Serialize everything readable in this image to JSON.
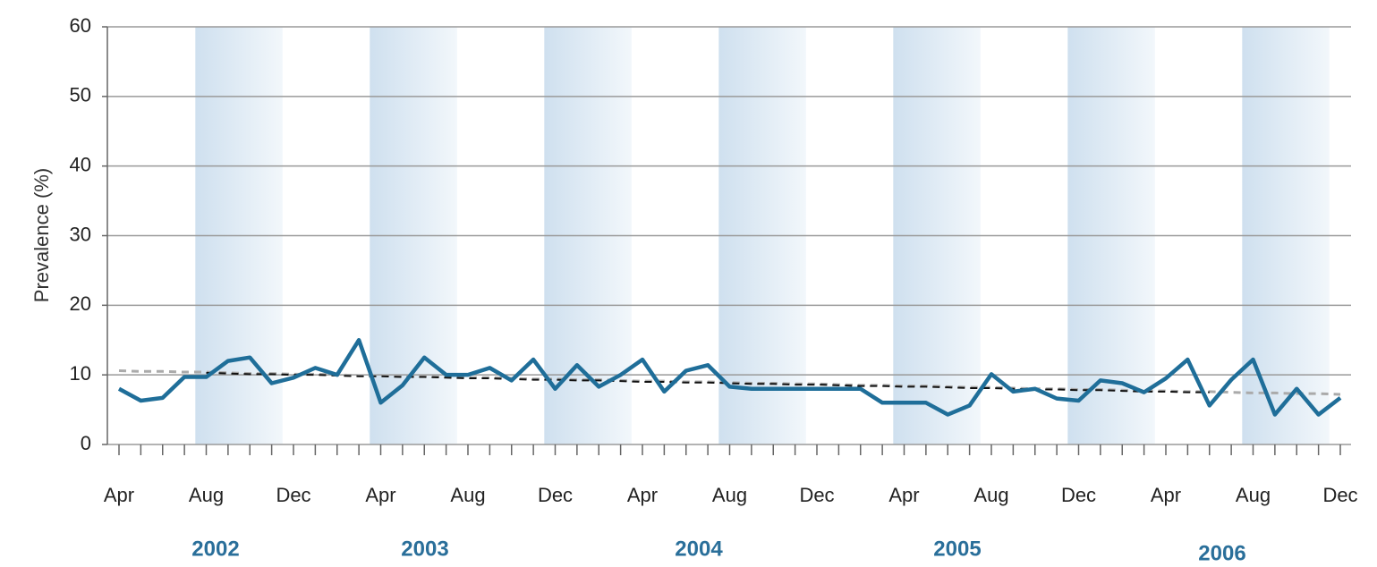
{
  "chart_data": {
    "type": "line",
    "y_label": "Prevalence (%)",
    "categories": [
      "Apr",
      null,
      null,
      null,
      "Aug",
      null,
      null,
      null,
      "Dec",
      null,
      null,
      null,
      "Apr",
      null,
      null,
      null,
      "Aug",
      null,
      null,
      null,
      "Dec",
      null,
      null,
      null,
      "Apr",
      null,
      null,
      null,
      "Aug",
      null,
      null,
      null,
      "Dec",
      null,
      null,
      null,
      "Apr",
      null,
      null,
      null,
      "Aug",
      null,
      null,
      null,
      "Dec",
      null,
      null,
      null,
      "Apr",
      null,
      null,
      null,
      "Aug",
      null,
      null,
      null,
      "Dec"
    ],
    "year_labels": [
      "2002",
      "2003",
      "2004",
      "2005",
      "2006"
    ],
    "series": [
      {
        "color": "#aaaaaa",
        "dashed": true,
        "width": 3,
        "values": [
          10.6,
          10.5,
          10.5,
          10.4,
          10.4,
          10.3,
          10.2,
          10.2,
          10.1,
          10.1,
          10.0,
          9.9,
          9.9,
          9.8,
          9.8,
          9.7,
          9.6,
          9.6,
          9.5,
          9.4,
          9.4,
          9.3,
          9.3,
          9.2,
          9.1,
          9.1,
          9.0,
          9.0,
          8.9,
          8.8,
          8.8,
          8.7,
          8.7,
          8.6,
          8.5,
          8.5,
          8.4,
          8.4,
          8.3,
          8.2,
          8.2,
          8.1,
          8.0,
          8.0,
          7.9,
          7.9,
          7.8,
          7.7,
          7.7,
          7.6,
          7.6,
          7.5,
          7.4,
          7.4,
          7.3,
          7.3,
          7.2
        ]
      },
      {
        "color": "#111111",
        "dashed": true,
        "width": 2,
        "values": [
          null,
          null,
          null,
          null,
          10.3,
          10.2,
          10.1,
          10.1,
          10.0,
          10.0,
          9.9,
          9.8,
          9.8,
          9.7,
          9.7,
          9.6,
          9.5,
          9.5,
          9.4,
          9.3,
          9.3,
          9.2,
          9.2,
          9.1,
          9.0,
          9.0,
          8.9,
          8.9,
          8.8,
          8.7,
          8.7,
          8.6,
          8.6,
          8.5,
          8.4,
          8.4,
          8.3,
          8.3,
          8.2,
          8.1,
          8.1,
          8.0,
          7.9,
          7.9,
          7.8,
          7.8,
          7.7,
          7.6,
          7.6,
          7.5,
          7.5,
          null,
          null,
          null,
          null,
          null,
          null
        ]
      },
      {
        "color": "#1f6e99",
        "dashed": false,
        "width": 4.5,
        "values": [
          8,
          6.3,
          6.7,
          9.7,
          9.7,
          12,
          12.5,
          8.8,
          9.6,
          11,
          10,
          15,
          6,
          8.5,
          12.5,
          10,
          10,
          11,
          9.2,
          12.2,
          8,
          11.4,
          8.3,
          10,
          12.2,
          7.6,
          10.6,
          11.4,
          8.3,
          8,
          8,
          8,
          8,
          8,
          8,
          6,
          6,
          6,
          4.3,
          5.6,
          10.1,
          7.6,
          8,
          6.6,
          6.3,
          9.2,
          8.8,
          7.5,
          9.5,
          12.2,
          5.6,
          9.3,
          12.2,
          4.3,
          8,
          4.3,
          6.7
        ]
      }
    ],
    "ylim": [
      0,
      60
    ],
    "yticks": [
      0,
      10,
      20,
      30,
      40,
      50,
      60
    ],
    "grid": true
  }
}
